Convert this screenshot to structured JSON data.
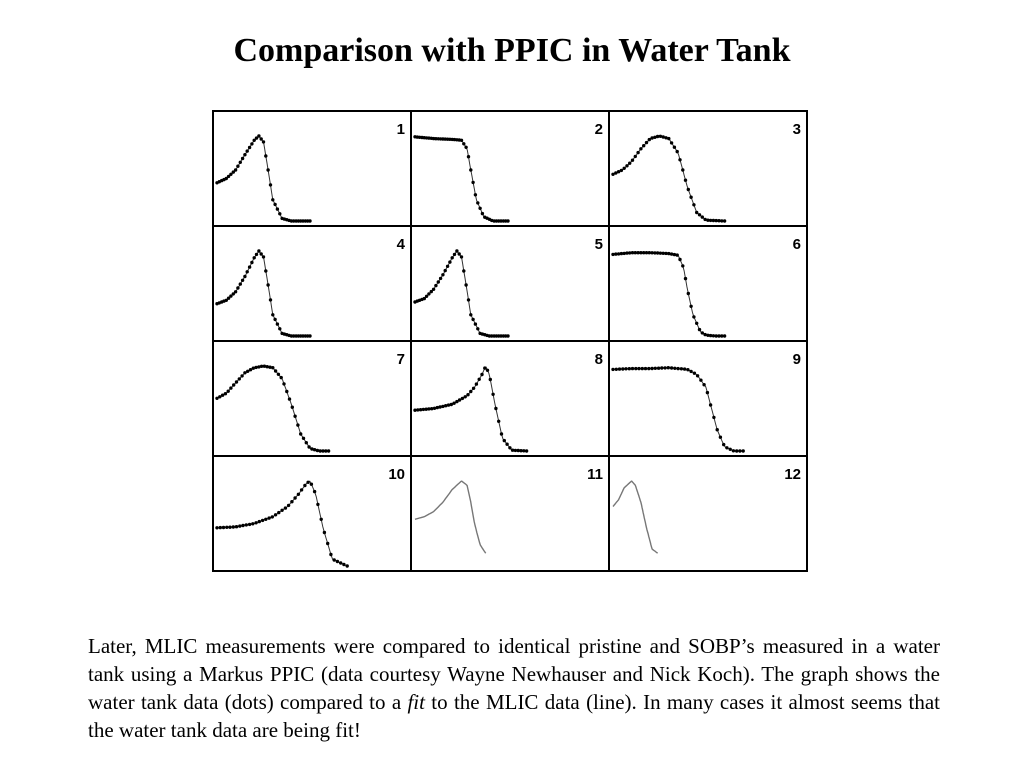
{
  "slide": {
    "title": "Comparison with PPIC in Water Tank",
    "paragraph": {
      "part1": "Later, MLIC measurements were compared to identical pristine and SOBP’s measured in a water tank using a Markus PPIC (data courtesy Wayne Newhauser and Nick Koch). The graph shows the water tank data (dots) compared to a ",
      "fit_word": "fit",
      "part2": " to the MLIC data (line). In many cases it almost seems that the water tank data are being fit!"
    }
  },
  "chart_data": {
    "type": "line",
    "layout": "grid 4 rows x 3 columns",
    "panels": [
      {
        "label": "1",
        "line_x": [
          0,
          0.05,
          0.1,
          0.15,
          0.2,
          0.225,
          0.25,
          0.275,
          0.3,
          0.35,
          0.4,
          0.45,
          0.5
        ],
        "line_y": [
          0.45,
          0.5,
          0.6,
          0.78,
          0.95,
          1.0,
          0.93,
          0.6,
          0.25,
          0.03,
          0,
          0,
          0
        ],
        "dots": true
      },
      {
        "label": "2",
        "line_x": [
          0,
          0.1,
          0.2,
          0.25,
          0.28,
          0.3,
          0.33,
          0.37,
          0.42,
          0.5
        ],
        "line_y": [
          0.99,
          0.97,
          0.96,
          0.95,
          0.85,
          0.6,
          0.25,
          0.05,
          0,
          0
        ],
        "dots": true
      },
      {
        "label": "3",
        "line_x": [
          0,
          0.05,
          0.1,
          0.15,
          0.2,
          0.25,
          0.3,
          0.35,
          0.4,
          0.45,
          0.5,
          0.6
        ],
        "line_y": [
          0.55,
          0.6,
          0.7,
          0.85,
          0.97,
          1.0,
          0.97,
          0.8,
          0.4,
          0.1,
          0.01,
          0
        ],
        "dots": true
      },
      {
        "label": "4",
        "line_x": [
          0,
          0.05,
          0.1,
          0.15,
          0.2,
          0.225,
          0.25,
          0.275,
          0.3,
          0.35,
          0.4,
          0.45,
          0.5
        ],
        "line_y": [
          0.38,
          0.42,
          0.52,
          0.7,
          0.92,
          1.0,
          0.93,
          0.6,
          0.25,
          0.03,
          0,
          0,
          0
        ],
        "dots": true
      },
      {
        "label": "5",
        "line_x": [
          0,
          0.05,
          0.1,
          0.15,
          0.2,
          0.225,
          0.25,
          0.275,
          0.3,
          0.35,
          0.4,
          0.45,
          0.5
        ],
        "line_y": [
          0.4,
          0.44,
          0.55,
          0.72,
          0.92,
          1.0,
          0.93,
          0.6,
          0.25,
          0.03,
          0,
          0,
          0
        ],
        "dots": true
      },
      {
        "label": "6",
        "line_x": [
          0,
          0.1,
          0.2,
          0.3,
          0.35,
          0.38,
          0.4,
          0.43,
          0.47,
          0.5,
          0.55,
          0.6
        ],
        "line_y": [
          0.96,
          0.98,
          0.98,
          0.97,
          0.95,
          0.8,
          0.55,
          0.25,
          0.05,
          0.01,
          0,
          0
        ],
        "dots": true
      },
      {
        "label": "7",
        "line_x": [
          0,
          0.05,
          0.1,
          0.15,
          0.2,
          0.25,
          0.3,
          0.35,
          0.4,
          0.45,
          0.5,
          0.55,
          0.6
        ],
        "line_y": [
          0.62,
          0.68,
          0.8,
          0.92,
          0.98,
          1.0,
          0.98,
          0.85,
          0.55,
          0.2,
          0.03,
          0,
          0
        ],
        "dots": true
      },
      {
        "label": "8",
        "line_x": [
          0,
          0.1,
          0.2,
          0.28,
          0.32,
          0.36,
          0.38,
          0.4,
          0.43,
          0.47,
          0.52,
          0.6
        ],
        "line_y": [
          0.48,
          0.5,
          0.55,
          0.65,
          0.75,
          0.9,
          1.0,
          0.9,
          0.55,
          0.15,
          0.01,
          0
        ],
        "dots": true
      },
      {
        "label": "9",
        "line_x": [
          0,
          0.1,
          0.2,
          0.3,
          0.4,
          0.45,
          0.5,
          0.53,
          0.56,
          0.6,
          0.65,
          0.7
        ],
        "line_y": [
          0.96,
          0.97,
          0.97,
          0.98,
          0.96,
          0.9,
          0.75,
          0.5,
          0.25,
          0.05,
          0,
          0
        ],
        "dots": true
      },
      {
        "label": "10",
        "line_x": [
          0,
          0.1,
          0.2,
          0.3,
          0.38,
          0.44,
          0.48,
          0.5,
          0.53,
          0.57,
          0.62,
          0.7
        ],
        "line_y": [
          0.45,
          0.46,
          0.5,
          0.58,
          0.7,
          0.85,
          0.97,
          1.0,
          0.85,
          0.45,
          0.08,
          0
        ],
        "dots": true
      },
      {
        "label": "11",
        "line_x": [
          0,
          0.05,
          0.1,
          0.15,
          0.2,
          0.25,
          0.28,
          0.3,
          0.32,
          0.35,
          0.38
        ],
        "line_y": [
          0.55,
          0.58,
          0.64,
          0.75,
          0.9,
          1.0,
          0.95,
          0.75,
          0.5,
          0.25,
          0.15
        ],
        "dots": false
      },
      {
        "label": "12",
        "line_x": [
          0,
          0.03,
          0.06,
          0.1,
          0.12,
          0.15,
          0.18,
          0.21,
          0.24
        ],
        "line_y": [
          0.7,
          0.78,
          0.92,
          1.0,
          0.95,
          0.75,
          0.45,
          0.2,
          0.15
        ],
        "dots": false
      }
    ]
  }
}
